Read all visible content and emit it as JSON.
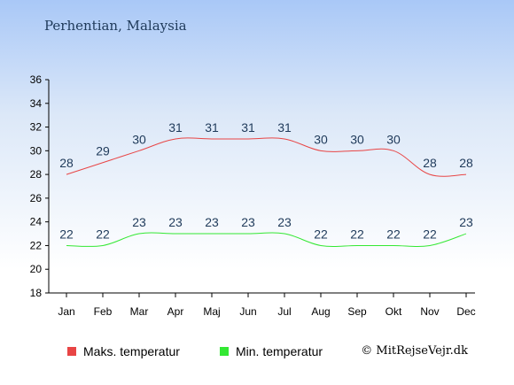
{
  "title": "Perhentian, Malaysia",
  "legend": {
    "max_label": "Maks. temperatur",
    "min_label": "Min. temperatur"
  },
  "credit": "© MitRejseVejr.dk",
  "colors": {
    "max": "#e84545",
    "min": "#33e833"
  },
  "chart_data": {
    "type": "line",
    "categories": [
      "Jan",
      "Feb",
      "Mar",
      "Apr",
      "Maj",
      "Jun",
      "Jul",
      "Aug",
      "Sep",
      "Okt",
      "Nov",
      "Dec"
    ],
    "series": [
      {
        "name": "Maks. temperatur",
        "values": [
          28,
          29,
          30,
          31,
          31,
          31,
          31,
          30,
          30,
          30,
          28,
          28
        ]
      },
      {
        "name": "Min. temperatur",
        "values": [
          22,
          22,
          23,
          23,
          23,
          23,
          23,
          22,
          22,
          22,
          22,
          23
        ]
      }
    ],
    "yticks": [
      18,
      20,
      22,
      24,
      26,
      28,
      30,
      32,
      34,
      36
    ],
    "ylim": [
      18,
      36
    ],
    "legend_position": "bottom"
  }
}
